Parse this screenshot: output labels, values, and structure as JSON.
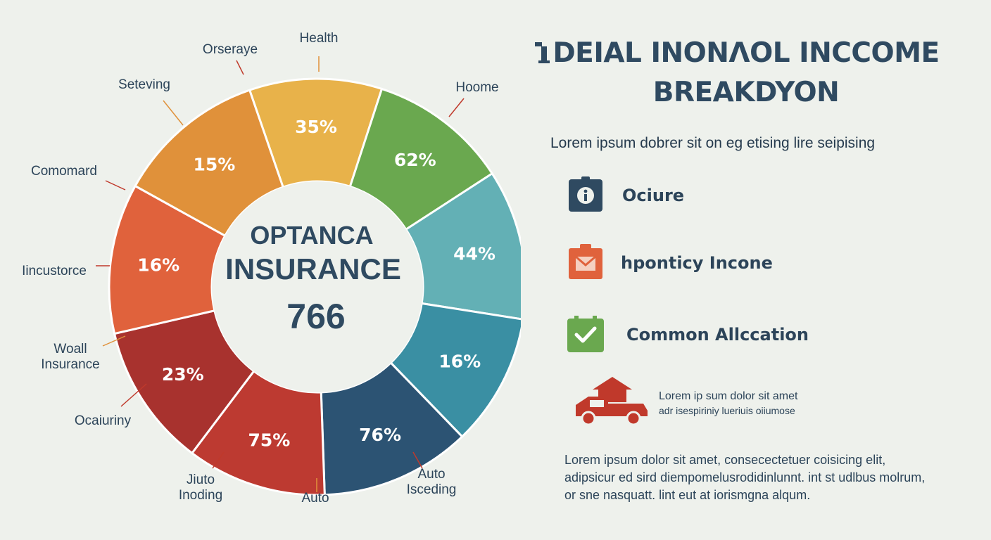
{
  "chart_data": {
    "type": "pie",
    "variant": "donut",
    "center": {
      "line1": "OPTANCA",
      "line2": "INSURANCE",
      "value": "766"
    },
    "slices": [
      {
        "value_label": "35%",
        "color": "#e8b24a"
      },
      {
        "value_label": "62%",
        "color": "#6aa84f"
      },
      {
        "value_label": "44%",
        "color": "#63b0b5"
      },
      {
        "value_label": "16%",
        "color": "#3a8fa3"
      },
      {
        "value_label": "76%",
        "color": "#2c5373"
      },
      {
        "value_label": "75%",
        "color": "#bd3a31"
      },
      {
        "value_label": "23%",
        "color": "#a8322e"
      },
      {
        "value_label": "16%",
        "color": "#e0623c"
      },
      {
        "value_label": "15%",
        "color": "#e0913a"
      }
    ],
    "category_labels": [
      {
        "lines": [
          "Health"
        ]
      },
      {
        "lines": [
          "Hoome"
        ]
      },
      {
        "lines": [
          "Auto",
          "Isceding"
        ]
      },
      {
        "lines": [
          "Auto"
        ]
      },
      {
        "lines": [
          "Jiuto",
          "Inoding"
        ]
      },
      {
        "lines": [
          "Ocaiuriny"
        ]
      },
      {
        "lines": [
          "Woall",
          "Insurance"
        ]
      },
      {
        "lines": [
          "Iincustorce"
        ]
      },
      {
        "lines": [
          "Comomard"
        ]
      },
      {
        "lines": [
          "Seteving"
        ]
      },
      {
        "lines": [
          "Orseraye"
        ]
      }
    ]
  },
  "panel": {
    "title_line1": "DEIAL INONΛOL INCCOME",
    "title_line2": "BREAKDYON",
    "subtitle": "Lorem ipsum dobrer sit on eg etising lire seipising",
    "legend": [
      {
        "label": "Ociure",
        "icon": "info-badge-icon",
        "color": "#2f4a61"
      },
      {
        "label": "hponticy Incone",
        "icon": "envelope-icon",
        "color": "#e0623c"
      },
      {
        "label": "Common Allccation",
        "icon": "checkmark-icon",
        "color": "#6aa84f"
      }
    ],
    "car_text_line1": "Lorem ip sum dolor sit amet",
    "car_text_line2": "adr isespiriniy lueriuis oiiumose",
    "paragraph": "Lorem ipsum dolor sit amet, consecectetuer coisicing elit, adipsicur ed sird diempomelusrodidinlunnt. int st udlbus molrum, or sne nasquatt. lint eut at iorismgna alqum.",
    "car_color": "#c0392b"
  }
}
